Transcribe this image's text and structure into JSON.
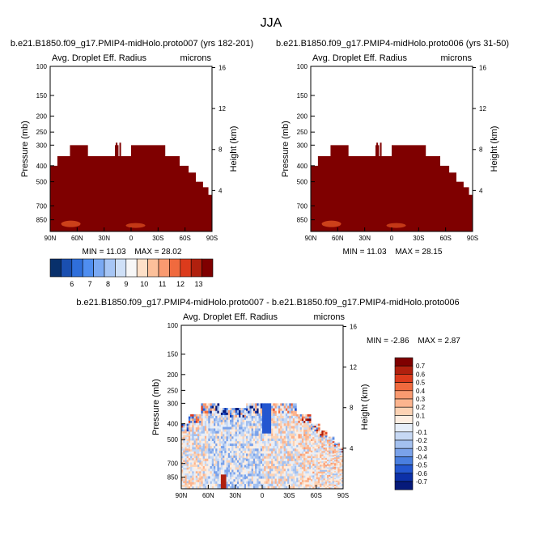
{
  "page": {
    "season": "JJA"
  },
  "colors": {
    "frame": "#000000",
    "dark_red_fill": "#7f0000",
    "orange_spot": "#e05020"
  },
  "chart_data": [
    {
      "type": "heatmap",
      "id": "left",
      "case_title": "b.e21.B1850.f09_g17.PMIP4-midHolo.proto007 (yrs 182-201)",
      "variable": "Avg. Droplet Eff. Radius",
      "units": "microns",
      "ylabel": "Pressure (mb)",
      "ylabel_right": "Height (km)",
      "x_ticks": [
        "90N",
        "60N",
        "30N",
        "0",
        "30S",
        "60S",
        "90S"
      ],
      "x_values": [
        90,
        60,
        30,
        0,
        -30,
        -60,
        -90
      ],
      "y_ticks": [
        "100",
        "150",
        "200",
        "250",
        "300",
        "400",
        "500",
        "700",
        "850"
      ],
      "y_values": [
        100,
        150,
        200,
        250,
        300,
        400,
        500,
        700,
        850
      ],
      "ylim": [
        1000,
        100
      ],
      "height_ticks": [
        "16",
        "12",
        "8",
        "4"
      ],
      "height_values": [
        16,
        12,
        8,
        4
      ],
      "min_label": "MIN = 11.03",
      "max_label": "MAX = 28.02",
      "min": 11.03,
      "max": 28.02,
      "cloud_top_profile_mb": [
        {
          "lat_range": [
            90,
            82
          ],
          "top": 400
        },
        {
          "lat_range": [
            82,
            68
          ],
          "top": 350
        },
        {
          "lat_range": [
            68,
            48
          ],
          "top": 300
        },
        {
          "lat_range": [
            48,
            18
          ],
          "top": 350
        },
        {
          "lat_range": [
            18,
            14
          ],
          "top": 300
        },
        {
          "lat_range": [
            14,
            0
          ],
          "top": 350
        },
        {
          "lat_range": [
            0,
            -38
          ],
          "top": 300
        },
        {
          "lat_range": [
            -38,
            -54
          ],
          "top": 350
        },
        {
          "lat_range": [
            -54,
            -64
          ],
          "top": 400
        },
        {
          "lat_range": [
            -64,
            -72
          ],
          "top": 440
        },
        {
          "lat_range": [
            -72,
            -80
          ],
          "top": 500
        },
        {
          "lat_range": [
            -80,
            -86
          ],
          "top": 540
        },
        {
          "lat_range": [
            -86,
            -90
          ],
          "top": 600
        }
      ]
    },
    {
      "type": "heatmap",
      "id": "right",
      "case_title": "b.e21.B1850.f09_g17.PMIP4-midHolo.proto006 (yrs 31-50)",
      "variable": "Avg. Droplet Eff. Radius",
      "units": "microns",
      "ylabel": "Pressure (mb)",
      "ylabel_right": "Height (km)",
      "x_ticks": [
        "90N",
        "60N",
        "30N",
        "0",
        "30S",
        "60S",
        "90S"
      ],
      "x_values": [
        90,
        60,
        30,
        0,
        -30,
        -60,
        -90
      ],
      "y_ticks": [
        "100",
        "150",
        "200",
        "250",
        "300",
        "400",
        "500",
        "700",
        "850"
      ],
      "y_values": [
        100,
        150,
        200,
        250,
        300,
        400,
        500,
        700,
        850
      ],
      "ylim": [
        1000,
        100
      ],
      "height_ticks": [
        "16",
        "12",
        "8",
        "4"
      ],
      "height_values": [
        16,
        12,
        8,
        4
      ],
      "min_label": "MIN = 11.03",
      "max_label": "MAX = 28.15",
      "min": 11.03,
      "max": 28.15,
      "cloud_top_profile_mb": [
        {
          "lat_range": [
            90,
            82
          ],
          "top": 400
        },
        {
          "lat_range": [
            82,
            68
          ],
          "top": 350
        },
        {
          "lat_range": [
            68,
            48
          ],
          "top": 300
        },
        {
          "lat_range": [
            48,
            18
          ],
          "top": 350
        },
        {
          "lat_range": [
            18,
            14
          ],
          "top": 300
        },
        {
          "lat_range": [
            14,
            0
          ],
          "top": 350
        },
        {
          "lat_range": [
            0,
            -38
          ],
          "top": 300
        },
        {
          "lat_range": [
            -38,
            -54
          ],
          "top": 350
        },
        {
          "lat_range": [
            -54,
            -64
          ],
          "top": 400
        },
        {
          "lat_range": [
            -64,
            -72
          ],
          "top": 440
        },
        {
          "lat_range": [
            -72,
            -80
          ],
          "top": 500
        },
        {
          "lat_range": [
            -80,
            -86
          ],
          "top": 540
        },
        {
          "lat_range": [
            -86,
            -90
          ],
          "top": 600
        }
      ]
    },
    {
      "type": "heatmap",
      "id": "diff",
      "case_title": "b.e21.B1850.f09_g17.PMIP4-midHolo.proto007 - b.e21.B1850.f09_g17.PMIP4-midHolo.proto006",
      "variable": "Avg. Droplet Eff. Radius",
      "units": "microns",
      "ylabel": "Pressure (mb)",
      "ylabel_right": "Height (km)",
      "x_ticks": [
        "90N",
        "60N",
        "30N",
        "0",
        "30S",
        "60S",
        "90S"
      ],
      "x_values": [
        90,
        60,
        30,
        0,
        -30,
        -60,
        -90
      ],
      "y_ticks": [
        "100",
        "150",
        "200",
        "250",
        "300",
        "400",
        "500",
        "700",
        "850"
      ],
      "y_values": [
        100,
        150,
        200,
        250,
        300,
        400,
        500,
        700,
        850
      ],
      "ylim": [
        1000,
        100
      ],
      "height_ticks": [
        "16",
        "12",
        "8",
        "4"
      ],
      "height_values": [
        16,
        12,
        8,
        4
      ],
      "min_label": "MIN = -2.86",
      "max_label": "MAX = 2.87",
      "min": -2.86,
      "max": 2.87
    }
  ],
  "colorbar_main": {
    "labels": [
      "6",
      "7",
      "8",
      "9",
      "10",
      "11",
      "12",
      "13"
    ],
    "colors": [
      "#08306b",
      "#1a4fb0",
      "#2f6fdb",
      "#4f8ef0",
      "#7aa9f3",
      "#a7c6f5",
      "#cfe0f7",
      "#f7f7f7",
      "#fde0c8",
      "#fcc09a",
      "#f99a70",
      "#f06a3e",
      "#dc3b1c",
      "#b0200e",
      "#7f0000"
    ]
  },
  "colorbar_diff": {
    "labels": [
      "0.7",
      "0.6",
      "0.5",
      "0.4",
      "0.3",
      "0.2",
      "0.1",
      "0",
      "-0.1",
      "-0.2",
      "-0.3",
      "-0.4",
      "-0.5",
      "-0.6",
      "-0.7"
    ],
    "colors": [
      "#7f0000",
      "#b0200e",
      "#dc3b1c",
      "#f06a3e",
      "#f99a70",
      "#fcb48e",
      "#fcd2b4",
      "#fdeee2",
      "#e6eef9",
      "#c6d8f4",
      "#a3c0ef",
      "#7aa2ea",
      "#4a7fe0",
      "#2457d0",
      "#0c30a8",
      "#061a7a"
    ]
  }
}
